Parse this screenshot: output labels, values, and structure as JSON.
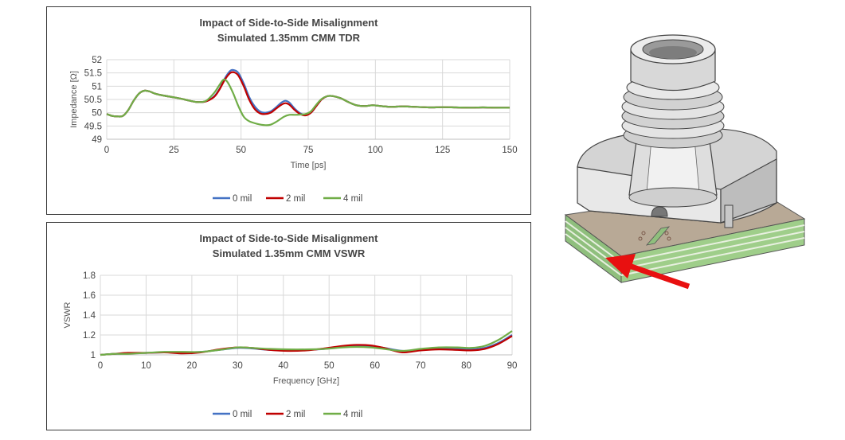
{
  "chart_data": [
    {
      "type": "line",
      "title": "Impact of Side-to-Side Misalignment",
      "subtitle": "Simulated 1.35mm CMM TDR",
      "xlabel": "Time [ps]",
      "ylabel": "Impedance [Ω]",
      "xlim": [
        0,
        150
      ],
      "ylim": [
        49,
        52
      ],
      "x_ticks": [
        "0",
        "25",
        "50",
        "75",
        "100",
        "125",
        "150"
      ],
      "y_ticks": [
        "49",
        "49.5",
        "50",
        "50.5",
        "51",
        "51.5",
        "52"
      ],
      "grid": true,
      "legend_position": "bottom",
      "series": [
        {
          "name": "0 mil",
          "color": "#4472C4",
          "points": [
            [
              0,
              49.95
            ],
            [
              2,
              49.88
            ],
            [
              4,
              49.86
            ],
            [
              6,
              49.88
            ],
            [
              8,
              50.1
            ],
            [
              10,
              50.45
            ],
            [
              12,
              50.72
            ],
            [
              14,
              50.83
            ],
            [
              16,
              50.8
            ],
            [
              18,
              50.72
            ],
            [
              21,
              50.65
            ],
            [
              25,
              50.58
            ],
            [
              28,
              50.52
            ],
            [
              31,
              50.45
            ],
            [
              34,
              50.4
            ],
            [
              37,
              50.43
            ],
            [
              40,
              50.62
            ],
            [
              42,
              50.9
            ],
            [
              44,
              51.3
            ],
            [
              46,
              51.58
            ],
            [
              47.5,
              51.6
            ],
            [
              49,
              51.5
            ],
            [
              51,
              51.1
            ],
            [
              53,
              50.6
            ],
            [
              55,
              50.25
            ],
            [
              57,
              50.05
            ],
            [
              59,
              50
            ],
            [
              61,
              50.05
            ],
            [
              63,
              50.2
            ],
            [
              65,
              50.38
            ],
            [
              66.5,
              50.45
            ],
            [
              68,
              50.38
            ],
            [
              70,
              50.15
            ],
            [
              72,
              49.98
            ],
            [
              74,
              49.92
            ],
            [
              76,
              50
            ],
            [
              78,
              50.25
            ],
            [
              80,
              50.5
            ],
            [
              82,
              50.62
            ],
            [
              84,
              50.63
            ],
            [
              87,
              50.55
            ],
            [
              90,
              50.4
            ],
            [
              93,
              50.28
            ],
            [
              96,
              50.25
            ],
            [
              99,
              50.28
            ],
            [
              102,
              50.25
            ],
            [
              106,
              50.22
            ],
            [
              110,
              50.24
            ],
            [
              115,
              50.22
            ],
            [
              120,
              50.2
            ],
            [
              125,
              50.21
            ],
            [
              130,
              50.2
            ],
            [
              135,
              50.19
            ],
            [
              140,
              50.2
            ],
            [
              145,
              50.19
            ],
            [
              150,
              50.19
            ]
          ]
        },
        {
          "name": "2 mil",
          "color": "#C00000",
          "points": [
            [
              0,
              49.95
            ],
            [
              2,
              49.88
            ],
            [
              4,
              49.86
            ],
            [
              6,
              49.88
            ],
            [
              8,
              50.1
            ],
            [
              10,
              50.45
            ],
            [
              12,
              50.72
            ],
            [
              14,
              50.83
            ],
            [
              16,
              50.8
            ],
            [
              18,
              50.72
            ],
            [
              21,
              50.65
            ],
            [
              25,
              50.58
            ],
            [
              28,
              50.52
            ],
            [
              31,
              50.45
            ],
            [
              34,
              50.4
            ],
            [
              37,
              50.43
            ],
            [
              40,
              50.6
            ],
            [
              42,
              50.88
            ],
            [
              44,
              51.25
            ],
            [
              46,
              51.5
            ],
            [
              47.5,
              51.52
            ],
            [
              49,
              51.4
            ],
            [
              51,
              51
            ],
            [
              53,
              50.5
            ],
            [
              55,
              50.15
            ],
            [
              57,
              49.98
            ],
            [
              59,
              49.95
            ],
            [
              61,
              50
            ],
            [
              63,
              50.15
            ],
            [
              65,
              50.3
            ],
            [
              66.5,
              50.36
            ],
            [
              68,
              50.3
            ],
            [
              70,
              50.1
            ],
            [
              72,
              49.95
            ],
            [
              74,
              49.9
            ],
            [
              76,
              50
            ],
            [
              78,
              50.25
            ],
            [
              80,
              50.5
            ],
            [
              82,
              50.62
            ],
            [
              84,
              50.63
            ],
            [
              87,
              50.55
            ],
            [
              90,
              50.4
            ],
            [
              93,
              50.28
            ],
            [
              96,
              50.25
            ],
            [
              99,
              50.28
            ],
            [
              102,
              50.25
            ],
            [
              106,
              50.22
            ],
            [
              110,
              50.24
            ],
            [
              115,
              50.22
            ],
            [
              120,
              50.2
            ],
            [
              125,
              50.21
            ],
            [
              130,
              50.2
            ],
            [
              135,
              50.19
            ],
            [
              140,
              50.2
            ],
            [
              145,
              50.19
            ],
            [
              150,
              50.19
            ]
          ]
        },
        {
          "name": "4 mil",
          "color": "#70AD47",
          "points": [
            [
              0,
              49.95
            ],
            [
              2,
              49.88
            ],
            [
              4,
              49.86
            ],
            [
              6,
              49.88
            ],
            [
              8,
              50.1
            ],
            [
              10,
              50.45
            ],
            [
              12,
              50.72
            ],
            [
              14,
              50.83
            ],
            [
              16,
              50.8
            ],
            [
              18,
              50.72
            ],
            [
              21,
              50.65
            ],
            [
              25,
              50.58
            ],
            [
              28,
              50.52
            ],
            [
              31,
              50.45
            ],
            [
              34,
              50.4
            ],
            [
              37,
              50.45
            ],
            [
              40,
              50.75
            ],
            [
              42,
              51.05
            ],
            [
              43.5,
              51.25
            ],
            [
              45,
              51.15
            ],
            [
              47,
              50.75
            ],
            [
              49,
              50.25
            ],
            [
              51,
              49.85
            ],
            [
              53,
              49.68
            ],
            [
              56,
              49.58
            ],
            [
              59,
              49.53
            ],
            [
              61,
              49.55
            ],
            [
              63,
              49.65
            ],
            [
              66,
              49.85
            ],
            [
              68,
              49.92
            ],
            [
              70,
              49.92
            ],
            [
              72,
              49.93
            ],
            [
              74,
              49.95
            ],
            [
              76,
              50.05
            ],
            [
              78,
              50.3
            ],
            [
              80,
              50.52
            ],
            [
              82,
              50.62
            ],
            [
              84,
              50.63
            ],
            [
              87,
              50.55
            ],
            [
              90,
              50.4
            ],
            [
              93,
              50.28
            ],
            [
              96,
              50.25
            ],
            [
              99,
              50.28
            ],
            [
              102,
              50.25
            ],
            [
              106,
              50.22
            ],
            [
              110,
              50.24
            ],
            [
              115,
              50.22
            ],
            [
              120,
              50.2
            ],
            [
              125,
              50.21
            ],
            [
              130,
              50.2
            ],
            [
              135,
              50.19
            ],
            [
              140,
              50.2
            ],
            [
              145,
              50.19
            ],
            [
              150,
              50.19
            ]
          ]
        }
      ]
    },
    {
      "type": "line",
      "title": "Impact of Side-to-Side Misalignment",
      "subtitle": "Simulated 1.35mm CMM VSWR",
      "xlabel": "Frequency [GHz]",
      "ylabel": "VSWR",
      "xlim": [
        0,
        90
      ],
      "ylim": [
        1,
        1.8
      ],
      "x_ticks": [
        "0",
        "10",
        "20",
        "30",
        "40",
        "50",
        "60",
        "70",
        "80",
        "90"
      ],
      "y_ticks": [
        "1",
        "1.2",
        "1.4",
        "1.6",
        "1.8"
      ],
      "grid": true,
      "legend_position": "bottom",
      "series": [
        {
          "name": "0 mil",
          "color": "#4472C4",
          "points": [
            [
              0,
              1
            ],
            [
              3,
              1.01
            ],
            [
              6,
              1.015
            ],
            [
              10,
              1.02
            ],
            [
              14,
              1.025
            ],
            [
              18,
              1.025
            ],
            [
              22,
              1.03
            ],
            [
              26,
              1.05
            ],
            [
              30,
              1.07
            ],
            [
              33,
              1.065
            ],
            [
              37,
              1.05
            ],
            [
              41,
              1.045
            ],
            [
              45,
              1.05
            ],
            [
              49,
              1.06
            ],
            [
              53,
              1.08
            ],
            [
              56,
              1.09
            ],
            [
              59,
              1.085
            ],
            [
              62,
              1.07
            ],
            [
              66,
              1.04
            ],
            [
              70,
              1.05
            ],
            [
              74,
              1.065
            ],
            [
              78,
              1.06
            ],
            [
              81,
              1.055
            ],
            [
              84,
              1.07
            ],
            [
              87,
              1.12
            ],
            [
              90,
              1.2
            ]
          ]
        },
        {
          "name": "2 mil",
          "color": "#C00000",
          "points": [
            [
              0,
              1
            ],
            [
              3,
              1.01
            ],
            [
              6,
              1.02
            ],
            [
              10,
              1.02
            ],
            [
              14,
              1.025
            ],
            [
              18,
              1.015
            ],
            [
              22,
              1.025
            ],
            [
              26,
              1.055
            ],
            [
              30,
              1.075
            ],
            [
              33,
              1.07
            ],
            [
              37,
              1.05
            ],
            [
              41,
              1.04
            ],
            [
              45,
              1.045
            ],
            [
              49,
              1.065
            ],
            [
              53,
              1.09
            ],
            [
              56,
              1.1
            ],
            [
              59,
              1.095
            ],
            [
              62,
              1.07
            ],
            [
              66,
              1.025
            ],
            [
              70,
              1.045
            ],
            [
              74,
              1.055
            ],
            [
              78,
              1.05
            ],
            [
              81,
              1.045
            ],
            [
              84,
              1.06
            ],
            [
              87,
              1.11
            ],
            [
              90,
              1.19
            ]
          ]
        },
        {
          "name": "4 mil",
          "color": "#70AD47",
          "points": [
            [
              0,
              1
            ],
            [
              3,
              1.01
            ],
            [
              6,
              1.01
            ],
            [
              10,
              1.02
            ],
            [
              14,
              1.03
            ],
            [
              18,
              1.03
            ],
            [
              22,
              1.03
            ],
            [
              26,
              1.05
            ],
            [
              30,
              1.075
            ],
            [
              33,
              1.07
            ],
            [
              37,
              1.06
            ],
            [
              41,
              1.055
            ],
            [
              45,
              1.055
            ],
            [
              49,
              1.06
            ],
            [
              53,
              1.075
            ],
            [
              56,
              1.08
            ],
            [
              59,
              1.075
            ],
            [
              62,
              1.06
            ],
            [
              66,
              1.04
            ],
            [
              70,
              1.06
            ],
            [
              74,
              1.075
            ],
            [
              78,
              1.075
            ],
            [
              81,
              1.07
            ],
            [
              84,
              1.09
            ],
            [
              87,
              1.15
            ],
            [
              90,
              1.24
            ]
          ]
        }
      ]
    }
  ],
  "illustration": {
    "icon": "connector-3d-model",
    "arrow_icon": "red-arrow-icon",
    "arrow_color": "#E81010"
  }
}
